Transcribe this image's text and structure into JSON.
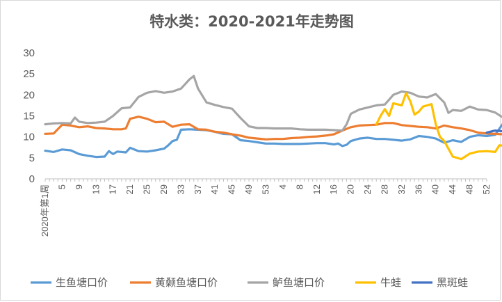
{
  "chart_data": {
    "type": "line",
    "title": "特水类：2020-2021年走势图",
    "xlabel": "",
    "ylabel": "",
    "ylim": [
      0,
      30
    ],
    "yticks": [
      0,
      5,
      10,
      15,
      20,
      25,
      30
    ],
    "grid": false,
    "legend_position": "bottom",
    "x_segments": [
      {
        "labels": [
          "2020年第1周",
          "5",
          "9",
          "13",
          "17",
          "21",
          "25",
          "29",
          "33",
          "37",
          "41",
          "45",
          "49",
          "53"
        ]
      },
      {
        "labels": [
          "4",
          "8",
          "12",
          "16",
          "20",
          "24",
          "28",
          "32",
          "36",
          "40",
          "44",
          "48",
          "52"
        ]
      }
    ],
    "series": [
      {
        "name": "生鱼塘口价",
        "color": "#5B9BD5",
        "points": [
          [
            0,
            6.7
          ],
          [
            2,
            6.4
          ],
          [
            4,
            7
          ],
          [
            6,
            6.8
          ],
          [
            8,
            5.9
          ],
          [
            10,
            5.5
          ],
          [
            12,
            5.2
          ],
          [
            14,
            5.3
          ],
          [
            15,
            6.6
          ],
          [
            16,
            5.9
          ],
          [
            17,
            6.5
          ],
          [
            19,
            6.3
          ],
          [
            20,
            7.4
          ],
          [
            22,
            6.6
          ],
          [
            24,
            6.5
          ],
          [
            26,
            6.8
          ],
          [
            28,
            7.2
          ],
          [
            29,
            8
          ],
          [
            30,
            9
          ],
          [
            31,
            9.3
          ],
          [
            32,
            11.7
          ],
          [
            34,
            11.8
          ],
          [
            36,
            11.7
          ],
          [
            38,
            11.6
          ],
          [
            40,
            11.2
          ],
          [
            42,
            10.7
          ],
          [
            44,
            10.6
          ],
          [
            46,
            9.2
          ],
          [
            48,
            9
          ],
          [
            50,
            8.7
          ],
          [
            52,
            8.4
          ],
          [
            54,
            8.4
          ],
          [
            56,
            8.3
          ],
          [
            58,
            8.3
          ],
          [
            60,
            8.3
          ],
          [
            62,
            8.4
          ],
          [
            64,
            8.5
          ],
          [
            66,
            8.5
          ],
          [
            68,
            8.2
          ],
          [
            69,
            8.4
          ],
          [
            70,
            7.8
          ],
          [
            71,
            8.1
          ],
          [
            72,
            9
          ],
          [
            74,
            9.6
          ],
          [
            76,
            9.8
          ],
          [
            78,
            9.5
          ],
          [
            80,
            9.5
          ],
          [
            82,
            9.3
          ],
          [
            84,
            9.1
          ],
          [
            86,
            9.4
          ],
          [
            88,
            10.2
          ],
          [
            90,
            10
          ],
          [
            92,
            9.6
          ],
          [
            94,
            8.6
          ],
          [
            96,
            9.2
          ],
          [
            98,
            8.8
          ],
          [
            100,
            10
          ],
          [
            102,
            10.4
          ],
          [
            104,
            10.2
          ],
          [
            106,
            10.5
          ],
          [
            108,
            13.4
          ],
          [
            110,
            13.1
          ],
          [
            112,
            12
          ]
        ]
      },
      {
        "name": "黄颡鱼塘口价",
        "color": "#ED7D31",
        "points": [
          [
            0,
            10.7
          ],
          [
            2,
            10.8
          ],
          [
            4,
            12.9
          ],
          [
            6,
            12.7
          ],
          [
            8,
            12.3
          ],
          [
            10,
            12.5
          ],
          [
            12,
            12.1
          ],
          [
            14,
            12
          ],
          [
            16,
            11.8
          ],
          [
            18,
            11.8
          ],
          [
            19,
            12
          ],
          [
            20,
            14.3
          ],
          [
            22,
            14.8
          ],
          [
            24,
            14.3
          ],
          [
            26,
            13.5
          ],
          [
            28,
            13.6
          ],
          [
            30,
            12.4
          ],
          [
            32,
            12.9
          ],
          [
            34,
            13
          ],
          [
            36,
            11.8
          ],
          [
            38,
            11.7
          ],
          [
            40,
            11.2
          ],
          [
            42,
            11
          ],
          [
            44,
            10.6
          ],
          [
            46,
            10.3
          ],
          [
            48,
            9.8
          ],
          [
            50,
            9.6
          ],
          [
            52,
            9.4
          ],
          [
            54,
            9.5
          ],
          [
            56,
            9.5
          ],
          [
            58,
            9.7
          ],
          [
            60,
            9.8
          ],
          [
            62,
            10
          ],
          [
            64,
            10.1
          ],
          [
            66,
            10.3
          ],
          [
            68,
            10.6
          ],
          [
            70,
            11.5
          ],
          [
            72,
            12.3
          ],
          [
            74,
            12.7
          ],
          [
            76,
            12.8
          ],
          [
            78,
            12.9
          ],
          [
            80,
            13.3
          ],
          [
            82,
            13.3
          ],
          [
            84,
            12.8
          ],
          [
            86,
            12.6
          ],
          [
            88,
            12.4
          ],
          [
            90,
            12.3
          ],
          [
            92,
            12
          ],
          [
            94,
            12.7
          ],
          [
            96,
            12.3
          ],
          [
            98,
            12
          ],
          [
            100,
            11.6
          ],
          [
            102,
            11
          ],
          [
            104,
            10.8
          ],
          [
            106,
            10.7
          ],
          [
            108,
            10.6
          ],
          [
            110,
            10.3
          ],
          [
            112,
            10.4
          ]
        ]
      },
      {
        "name": "鲈鱼塘口价",
        "color": "#A5A5A5",
        "points": [
          [
            0,
            13
          ],
          [
            2,
            13.2
          ],
          [
            4,
            13.3
          ],
          [
            6,
            13.2
          ],
          [
            7,
            14.6
          ],
          [
            8,
            13.6
          ],
          [
            10,
            13.3
          ],
          [
            12,
            13.4
          ],
          [
            14,
            13.6
          ],
          [
            16,
            15
          ],
          [
            18,
            16.8
          ],
          [
            20,
            17
          ],
          [
            22,
            19.5
          ],
          [
            24,
            20.5
          ],
          [
            26,
            20.9
          ],
          [
            28,
            20.5
          ],
          [
            30,
            20.8
          ],
          [
            32,
            21.5
          ],
          [
            34,
            23.7
          ],
          [
            35,
            24.5
          ],
          [
            36,
            21.5
          ],
          [
            38,
            18.2
          ],
          [
            40,
            17.6
          ],
          [
            42,
            17.1
          ],
          [
            44,
            16.7
          ],
          [
            46,
            14.5
          ],
          [
            48,
            12.5
          ],
          [
            50,
            12.1
          ],
          [
            52,
            12.1
          ],
          [
            54,
            12
          ],
          [
            56,
            12
          ],
          [
            58,
            12
          ],
          [
            60,
            11.8
          ],
          [
            62,
            11.7
          ],
          [
            64,
            11.7
          ],
          [
            66,
            11.7
          ],
          [
            68,
            11.6
          ],
          [
            70,
            11.5
          ],
          [
            71,
            13
          ],
          [
            72,
            15.5
          ],
          [
            74,
            16.5
          ],
          [
            76,
            17
          ],
          [
            78,
            17.5
          ],
          [
            80,
            17.7
          ],
          [
            82,
            20
          ],
          [
            84,
            20.8
          ],
          [
            86,
            20.5
          ],
          [
            88,
            19.6
          ],
          [
            90,
            19.4
          ],
          [
            92,
            20.2
          ],
          [
            94,
            18.2
          ],
          [
            95,
            15.7
          ],
          [
            96,
            16.4
          ],
          [
            98,
            16.2
          ],
          [
            100,
            17.2
          ],
          [
            102,
            16.5
          ],
          [
            104,
            16.4
          ],
          [
            106,
            15.8
          ],
          [
            108,
            14.5
          ],
          [
            110,
            13.2
          ],
          [
            112,
            13
          ]
        ]
      },
      {
        "name": "牛蛙",
        "color": "#FFC000",
        "points": [
          [
            78,
            13
          ],
          [
            79,
            15
          ],
          [
            80,
            16.6
          ],
          [
            81,
            15
          ],
          [
            82,
            18
          ],
          [
            84,
            17.5
          ],
          [
            85,
            20.4
          ],
          [
            86,
            18.5
          ],
          [
            87,
            15.3
          ],
          [
            88,
            16
          ],
          [
            89,
            17.2
          ],
          [
            90,
            17.5
          ],
          [
            91,
            17.8
          ],
          [
            92,
            13
          ],
          [
            93,
            10
          ],
          [
            94,
            9
          ],
          [
            96,
            5.3
          ],
          [
            98,
            4.7
          ],
          [
            100,
            6
          ],
          [
            102,
            6.5
          ],
          [
            104,
            6.6
          ],
          [
            106,
            6.4
          ],
          [
            107,
            8
          ],
          [
            109,
            7.7
          ],
          [
            111,
            7.8
          ],
          [
            112,
            8
          ]
        ]
      },
      {
        "name": "黑斑蛙",
        "color": "#4472C4",
        "points": [
          [
            104,
            11
          ],
          [
            106,
            11.5
          ],
          [
            108,
            11.3
          ],
          [
            110,
            13
          ],
          [
            111,
            11.9
          ],
          [
            112,
            12.3
          ]
        ]
      }
    ]
  }
}
